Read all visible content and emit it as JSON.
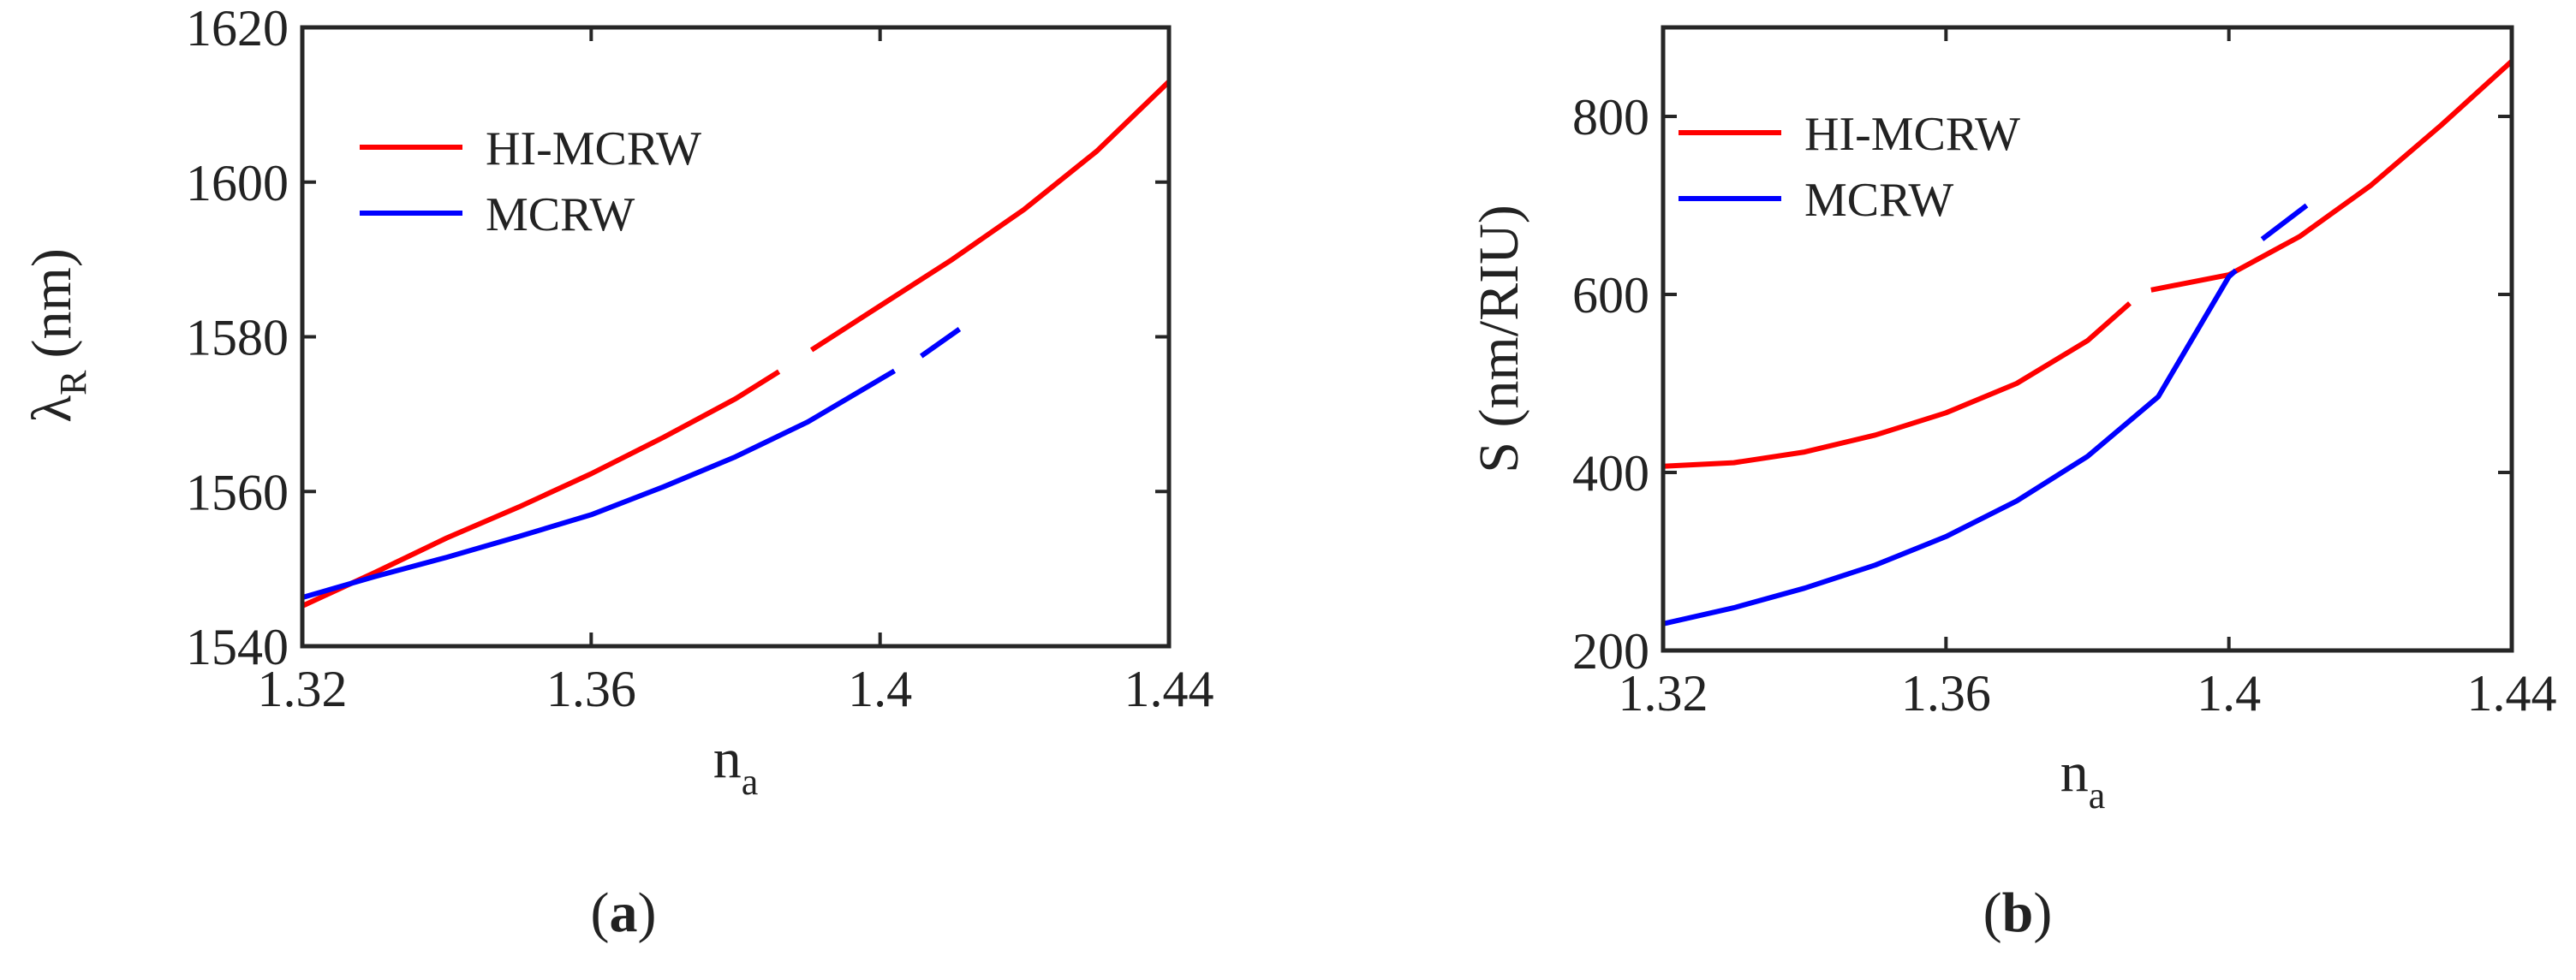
{
  "chart_data": [
    {
      "type": "line",
      "caption_letter": "a",
      "xlabel": "n",
      "xlabel_sub": "a",
      "ylabel": "λ",
      "ylabel_sub": "R",
      "ylabel_unit": "(nm)",
      "xlim": [
        1.32,
        1.44
      ],
      "ylim": [
        1540,
        1620
      ],
      "xticks": [
        1.32,
        1.36,
        1.4,
        1.44
      ],
      "xtick_labels": [
        "1.32",
        "1.36",
        "1.4",
        "1.44"
      ],
      "yticks": [
        1540,
        1560,
        1580,
        1600,
        1620
      ],
      "ytick_labels": [
        "1540",
        "1560",
        "1580",
        "1600",
        "1620"
      ],
      "grid": false,
      "legend_position": "top-left",
      "series": [
        {
          "name": "HI-MCRW",
          "color": "#ff0000",
          "segments": [
            [
              [
                1.32,
                1545.2
              ],
              [
                1.33,
                1549.5
              ],
              [
                1.34,
                1554.0
              ],
              [
                1.35,
                1558.0
              ],
              [
                1.36,
                1562.3
              ],
              [
                1.37,
                1567.0
              ],
              [
                1.38,
                1572.0
              ],
              [
                1.386,
                1575.5
              ]
            ],
            [
              [
                1.3905,
                1578.3
              ],
              [
                1.4,
                1584.0
              ],
              [
                1.41,
                1590.0
              ],
              [
                1.42,
                1596.5
              ],
              [
                1.43,
                1604.0
              ],
              [
                1.44,
                1613.0
              ]
            ]
          ]
        },
        {
          "name": "MCRW",
          "color": "#0000ff",
          "segments": [
            [
              [
                1.32,
                1546.3
              ],
              [
                1.33,
                1549.0
              ],
              [
                1.34,
                1551.5
              ],
              [
                1.35,
                1554.2
              ],
              [
                1.36,
                1557.0
              ],
              [
                1.37,
                1560.6
              ],
              [
                1.38,
                1564.5
              ],
              [
                1.39,
                1569.0
              ],
              [
                1.4,
                1574.5
              ],
              [
                1.402,
                1575.6
              ]
            ],
            [
              [
                1.4057,
                1577.5
              ],
              [
                1.411,
                1581.0
              ]
            ]
          ]
        }
      ]
    },
    {
      "type": "line",
      "caption_letter": "b",
      "xlabel": "n",
      "xlabel_sub": "a",
      "ylabel": "S (nm/RIU)",
      "xlim": [
        1.32,
        1.44
      ],
      "ylim": [
        200,
        900
      ],
      "xticks": [
        1.32,
        1.36,
        1.4,
        1.44
      ],
      "xtick_labels": [
        "1.32",
        "1.36",
        "1.4",
        "1.44"
      ],
      "yticks": [
        200,
        400,
        600,
        800
      ],
      "ytick_labels": [
        "200",
        "400",
        "600",
        "800"
      ],
      "grid": false,
      "legend_position": "top-left",
      "series": [
        {
          "name": "HI-MCRW",
          "color": "#ff0000",
          "segments": [
            [
              [
                1.32,
                407
              ],
              [
                1.33,
                411
              ],
              [
                1.34,
                423
              ],
              [
                1.35,
                442
              ],
              [
                1.36,
                467
              ],
              [
                1.37,
                500
              ],
              [
                1.38,
                548
              ],
              [
                1.386,
                590
              ]
            ],
            [
              [
                1.389,
                605
              ],
              [
                1.4,
                622
              ],
              [
                1.41,
                665
              ],
              [
                1.42,
                722
              ],
              [
                1.43,
                790
              ],
              [
                1.44,
                862
              ]
            ]
          ]
        },
        {
          "name": "MCRW",
          "color": "#0000ff",
          "segments": [
            [
              [
                1.32,
                230
              ],
              [
                1.33,
                248
              ],
              [
                1.34,
                270
              ],
              [
                1.35,
                296
              ],
              [
                1.36,
                328
              ],
              [
                1.37,
                368
              ],
              [
                1.38,
                418
              ],
              [
                1.39,
                485
              ],
              [
                1.4,
                620
              ],
              [
                1.401,
                627
              ]
            ],
            [
              [
                1.4047,
                662
              ],
              [
                1.411,
                700
              ]
            ]
          ]
        }
      ]
    }
  ]
}
